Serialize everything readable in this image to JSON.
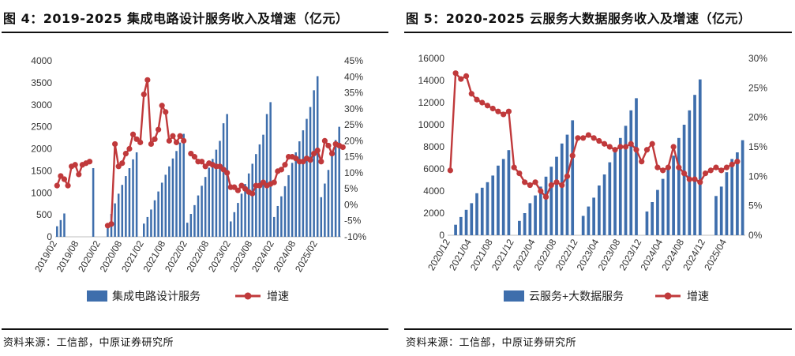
{
  "chart_data": [
    {
      "type": "bar",
      "title": "图 4：2019-2025 集成电路设计服务收入及增速（亿元）",
      "source": "资料来源：工信部，中原证券研究所",
      "left_axis": {
        "min": 0,
        "max": 4000,
        "step": 500,
        "ticks": [
          "0",
          "500",
          "1000",
          "1500",
          "2000",
          "2500",
          "3000",
          "3500",
          "4000"
        ]
      },
      "right_axis": {
        "min": -10,
        "max": 45,
        "step": 5,
        "ticks": [
          "-10%",
          "-5%",
          "0%",
          "5%",
          "10%",
          "15%",
          "20%",
          "25%",
          "30%",
          "35%",
          "40%",
          "45%"
        ]
      },
      "x_tick_labels": [
        "2019/02",
        "2019/08",
        "2020/02",
        "2020/08",
        "2021/02",
        "2021/08",
        "2022/02",
        "2022/08",
        "2023/02",
        "2023/08",
        "2024/02",
        "2024/08",
        "2025/02"
      ],
      "series": [
        {
          "name": "集成电路设计服务",
          "kind": "bar",
          "color": "#3e6eac",
          "values": [
            240,
            380,
            530,
            null,
            null,
            null,
            null,
            null,
            null,
            null,
            1560,
            null,
            null,
            null,
            270,
            520,
            760,
            980,
            1180,
            1380,
            1560,
            1760,
            1920,
            null,
            300,
            450,
            620,
            830,
            1030,
            1230,
            1410,
            1600,
            1780,
            1950,
            2140,
            2340,
            320,
            520,
            720,
            940,
            1160,
            1360,
            1570,
            1770,
            1980,
            2180,
            2580,
            2790,
            350,
            560,
            770,
            980,
            1200,
            1440,
            1660,
            1880,
            2100,
            2320,
            2790,
            3060,
            450,
            700,
            920,
            1150,
            1400,
            1680,
            1920,
            2170,
            2420,
            2680,
            2950,
            3330,
            3650,
            900,
            1210,
            1520,
            1850,
            2200,
            2500
          ]
        },
        {
          "name": "增速",
          "kind": "line",
          "color": "#c0393b",
          "values": [
            6,
            9,
            8,
            6,
            12,
            12.5,
            9.5,
            12.5,
            13,
            13.5,
            null,
            null,
            null,
            null,
            -6.5,
            -6,
            19,
            12,
            13,
            16,
            17.5,
            22,
            20.5,
            19.5,
            34.5,
            39,
            19,
            20.5,
            23.5,
            31,
            29,
            20,
            21.5,
            19.5,
            21.5,
            20,
            null,
            16,
            15,
            13.5,
            13.5,
            12,
            13,
            12.5,
            12,
            12,
            11,
            10,
            5.5,
            5.5,
            4.5,
            6,
            5,
            4,
            3.5,
            6,
            6,
            7,
            6,
            6.5,
            7,
            10.5,
            11,
            12.5,
            15,
            15,
            14.5,
            13.5,
            13.5,
            14.5,
            14,
            16,
            17,
            13.5,
            20,
            18.5,
            16,
            19,
            18.5,
            18
          ]
        }
      ]
    },
    {
      "type": "bar",
      "title": "图 5：2020-2025 云服务大数据服务收入及增速（亿元）",
      "source": "资料来源：工信部，中原证券研究所",
      "left_axis": {
        "min": 0,
        "max": 16000,
        "step": 2000,
        "ticks": [
          "0",
          "2000",
          "4000",
          "6000",
          "8000",
          "10000",
          "12000",
          "14000",
          "16000"
        ]
      },
      "right_axis": {
        "min": 0,
        "max": 30,
        "step": 5,
        "ticks": [
          "0%",
          "5%",
          "10%",
          "15%",
          "20%",
          "25%",
          "30%"
        ]
      },
      "x_tick_labels": [
        "2020/12",
        "2021/04",
        "2021/08",
        "2021/12",
        "2022/04",
        "2022/08",
        "2022/12",
        "2023/04",
        "2023/08",
        "2023/12",
        "2024/04",
        "2024/08",
        "2024/12",
        "2025/04"
      ],
      "series": [
        {
          "name": "云服务+大数据服务",
          "kind": "bar",
          "color": "#3e6eac",
          "values": [
            null,
            950,
            1650,
            2300,
            2900,
            3800,
            4300,
            4800,
            5400,
            6300,
            6900,
            7700,
            null,
            1300,
            2000,
            2900,
            3600,
            4400,
            5300,
            6200,
            7100,
            8300,
            9100,
            10400,
            null,
            1750,
            2600,
            3400,
            4500,
            5500,
            6600,
            7700,
            8800,
            9900,
            11300,
            12400,
            null,
            2150,
            3000,
            4100,
            5100,
            6100,
            7200,
            8800,
            10000,
            11300,
            12700,
            14100,
            null,
            null,
            3550,
            4400,
            5700,
            6900,
            7500,
            8600
          ]
        },
        {
          "name": "增速",
          "kind": "line",
          "color": "#c0393b",
          "values": [
            11,
            27.5,
            26.5,
            27,
            24,
            23,
            22.5,
            22,
            21.5,
            21,
            20.5,
            21,
            11.5,
            10.5,
            9,
            8.5,
            9,
            7.5,
            6.5,
            8.5,
            9,
            8.5,
            10,
            13.5,
            16.5,
            16.5,
            17,
            16.5,
            16,
            15.5,
            15,
            14.5,
            15,
            15,
            15.5,
            14.5,
            12.5,
            14.5,
            15.5,
            11.5,
            11,
            11.5,
            15,
            11.5,
            10.5,
            9.5,
            9.5,
            9,
            10.5,
            11,
            11.5,
            11,
            11.5,
            12,
            12.5
          ]
        }
      ]
    }
  ]
}
